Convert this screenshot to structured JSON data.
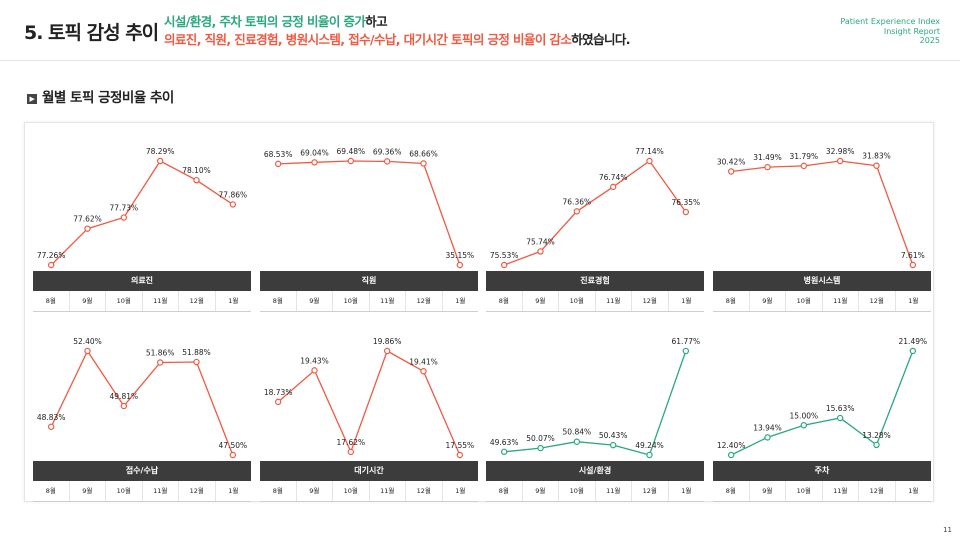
{
  "header": {
    "title": "5. 토픽 감성 추이",
    "line1_green": "시설/환경, 주차 토픽의 긍정 비율이 증가",
    "line1_tail": "하고",
    "line2_red": "의료진, 직원, 진료경험, 병원시스템, 접수/수납, 대기시간 토픽의 긍정 비율이 감소",
    "line2_tail": "하였습니다.",
    "brand_line1": "Patient Experience Index",
    "brand_line2": "Insight Report",
    "brand_line3": "2025"
  },
  "section": {
    "icon": "chevron-right-icon",
    "title": "월별 토픽 긍정비율 추이"
  },
  "page_number": "11",
  "colors": {
    "red": "#ef5a43",
    "green": "#2aa87e",
    "category_bar": "#3c3c3c"
  },
  "chart_data": [
    {
      "type": "line",
      "category": "의료진",
      "color": "#ef5a43",
      "x": [
        "8월",
        "9월",
        "10월",
        "11월",
        "12월",
        "1월"
      ],
      "values": [
        77.26,
        77.62,
        77.73,
        78.29,
        78.1,
        77.86
      ],
      "labels": [
        "77.26%",
        "77.62%",
        "77.73%",
        "78.29%",
        "78.10%",
        "77.86%"
      ]
    },
    {
      "type": "line",
      "category": "직원",
      "color": "#ef5a43",
      "x": [
        "8월",
        "9월",
        "10월",
        "11월",
        "12월",
        "1월"
      ],
      "values": [
        68.53,
        69.04,
        69.48,
        69.36,
        68.66,
        35.15
      ],
      "labels": [
        "68.53%",
        "69.04%",
        "69.48%",
        "69.36%",
        "68.66%",
        "35.15%"
      ]
    },
    {
      "type": "line",
      "category": "진료경험",
      "color": "#ef5a43",
      "x": [
        "8월",
        "9월",
        "10월",
        "11월",
        "12월",
        "1월"
      ],
      "values": [
        75.53,
        75.74,
        76.36,
        76.74,
        77.14,
        76.35
      ],
      "labels": [
        "75.53%",
        "75.74%",
        "76.36%",
        "76.74%",
        "77.14%",
        "76.35%"
      ]
    },
    {
      "type": "line",
      "category": "병원시스템",
      "color": "#ef5a43",
      "x": [
        "8월",
        "9월",
        "10월",
        "11월",
        "12월",
        "1월"
      ],
      "values": [
        30.42,
        31.49,
        31.79,
        32.98,
        31.83,
        7.61
      ],
      "labels": [
        "30.42%",
        "31.49%",
        "31.79%",
        "32.98%",
        "31.83%",
        "7.61%"
      ]
    },
    {
      "type": "line",
      "category": "접수/수납",
      "color": "#ef5a43",
      "x": [
        "8월",
        "9월",
        "10월",
        "11월",
        "12월",
        "1월"
      ],
      "values": [
        48.83,
        52.4,
        49.81,
        51.86,
        51.88,
        47.5
      ],
      "labels": [
        "48.83%",
        "52.40%",
        "49.81%",
        "51.86%",
        "51.88%",
        "47.50%"
      ]
    },
    {
      "type": "line",
      "category": "대기시간",
      "color": "#ef5a43",
      "x": [
        "8월",
        "9월",
        "10월",
        "11월",
        "12월",
        "1월"
      ],
      "values": [
        18.73,
        19.43,
        17.62,
        19.86,
        19.41,
        17.55
      ],
      "labels": [
        "18.73%",
        "19.43%",
        "17.62%",
        "19.86%",
        "19.41%",
        "17.55%"
      ]
    },
    {
      "type": "line",
      "category": "시설/환경",
      "color": "#2aa87e",
      "x": [
        "8월",
        "9월",
        "10월",
        "11월",
        "12월",
        "1월"
      ],
      "values": [
        49.63,
        50.07,
        50.84,
        50.43,
        49.24,
        61.77
      ],
      "labels": [
        "49.63%",
        "50.07%",
        "50.84%",
        "50.43%",
        "49.24%",
        "61.77%"
      ]
    },
    {
      "type": "line",
      "category": "주차",
      "color": "#2aa87e",
      "x": [
        "8월",
        "9월",
        "10월",
        "11월",
        "12월",
        "1월"
      ],
      "values": [
        12.4,
        13.94,
        15.0,
        15.63,
        13.28,
        21.49
      ],
      "labels": [
        "12.40%",
        "13.94%",
        "15.00%",
        "15.63%",
        "13.28%",
        "21.49%"
      ]
    }
  ]
}
